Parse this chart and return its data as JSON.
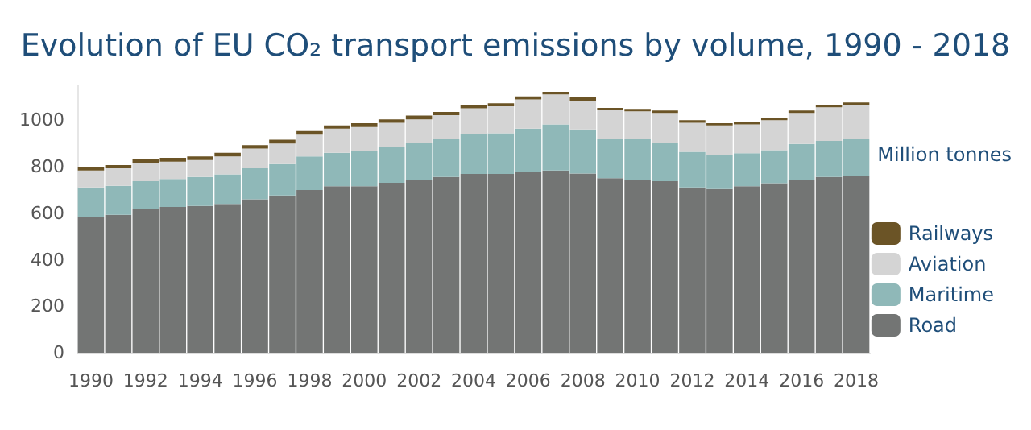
{
  "chart_data": {
    "type": "bar",
    "stacked": true,
    "title": "Evolution of EU CO₂ transport emissions by volume, 1990 - 2018",
    "ylabel": "Million tonnes",
    "categories": [
      "1990",
      null,
      "1992",
      null,
      "1994",
      null,
      "1996",
      null,
      "1998",
      null,
      "2000",
      null,
      "2002",
      null,
      "2004",
      null,
      "2006",
      null,
      "2008",
      null,
      "2010",
      null,
      "2012",
      null,
      "2014",
      null,
      "2016",
      null,
      "2018"
    ],
    "series": [
      {
        "name": "Road",
        "color": "#737574",
        "values": [
          582,
          593,
          620,
          627,
          631,
          640,
          660,
          676,
          700,
          716,
          716,
          731,
          744,
          756,
          769,
          769,
          778,
          784,
          771,
          751,
          744,
          738,
          711,
          704,
          716,
          729,
          744,
          756,
          760
        ]
      },
      {
        "name": "Maritime",
        "color": "#8fb8b8",
        "values": [
          129,
          125,
          118,
          120,
          125,
          127,
          133,
          135,
          144,
          144,
          151,
          153,
          160,
          164,
          173,
          175,
          186,
          198,
          189,
          169,
          176,
          166,
          153,
          147,
          142,
          142,
          154,
          155,
          160
        ]
      },
      {
        "name": "Aviation",
        "color": "#d4d4d4",
        "values": [
          73,
          75,
          78,
          75,
          73,
          77,
          85,
          89,
          94,
          104,
          104,
          105,
          100,
          102,
          109,
          116,
          125,
          129,
          124,
          124,
          118,
          127,
          125,
          127,
          124,
          129,
          133,
          145,
          147
        ]
      },
      {
        "name": "Railways",
        "color": "#6b5426",
        "values": [
          16,
          14,
          15,
          16,
          15,
          16,
          15,
          16,
          15,
          14,
          16,
          15,
          16,
          14,
          16,
          13,
          13,
          11,
          16,
          9,
          11,
          11,
          11,
          9,
          9,
          9,
          11,
          11,
          9
        ]
      }
    ],
    "ylim": [
      0,
      1150
    ],
    "yticks": [
      0,
      200,
      400,
      600,
      800,
      {
        "value": 1000,
        "label": "1000"
      }
    ],
    "grid": false,
    "legend": "right"
  }
}
